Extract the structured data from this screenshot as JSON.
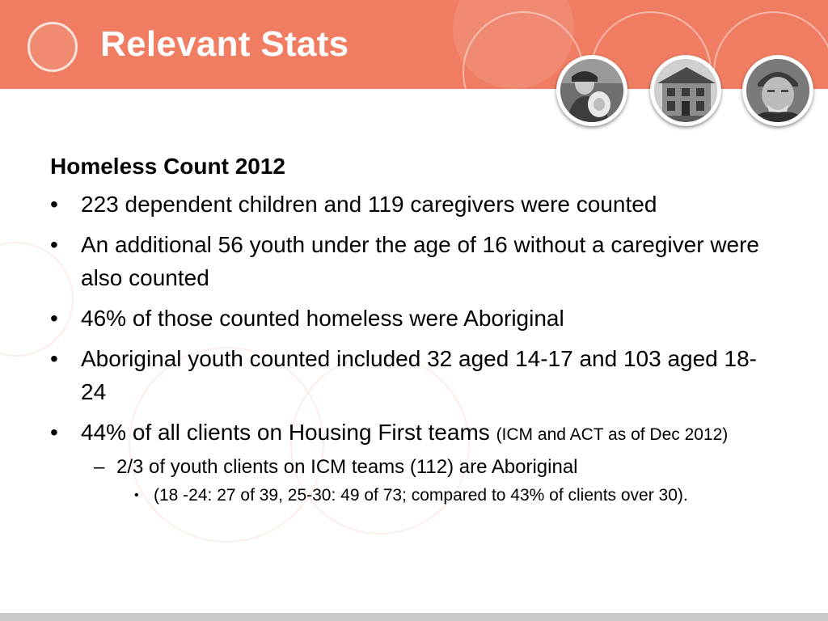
{
  "slide": {
    "title": "Relevant Stats",
    "heading": "Homeless Count 2012",
    "bullets": [
      {
        "text": "223 dependent children and 119 caregivers were counted"
      },
      {
        "text": "An additional 56 youth under the age of 16 without a caregiver were also counted"
      },
      {
        "text": "46% of those counted homeless were Aboriginal"
      },
      {
        "text": "Aboriginal youth counted included 32 aged 14-17 and 103 aged 18-24"
      },
      {
        "text": "44% of all clients on Housing First teams",
        "note": "(ICM and ACT as of Dec 2012)"
      }
    ],
    "sub_bullet": "2/3 of youth clients on ICM teams (112) are Aboriginal",
    "sub_sub_bullet": "(18 -24: 27 of 39, 25-30: 49 of 73; compared to 43% of clients over 30).",
    "bullet_marker": "•",
    "dash_marker": "–"
  },
  "photos": [
    {
      "name": "mother-with-baby-photo"
    },
    {
      "name": "house-photo"
    },
    {
      "name": "elderly-man-photo"
    }
  ],
  "colors": {
    "header": "#f07d62",
    "title_text": "#ffffff",
    "body_text": "#000000",
    "footer": "#c8c8c8"
  }
}
